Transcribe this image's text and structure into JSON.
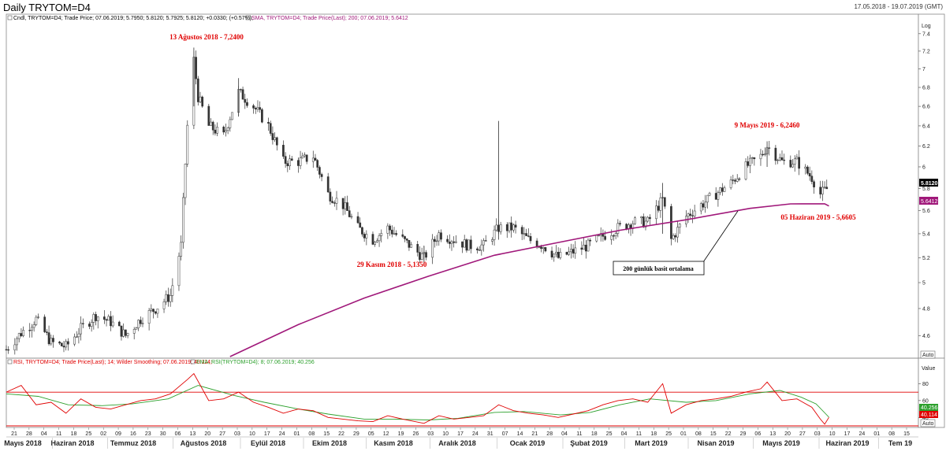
{
  "header": {
    "title": "Daily TRYTOM=D4",
    "date_range": "17.05.2018 - 19.07.2019 (GMT)"
  },
  "price_panel": {
    "legend_cndl": "Cndl, TRYTOM=D4; Trade Price; 07.06.2019; 5.7950; 5.8120; 5.7925; 5.8120; +0.0330; (+0.57%);",
    "legend_sma": "SMA, TRYTOM=D4; Trade Price(Last); 200; 07.06.2019; 5.6412",
    "axis_unit": "Log",
    "last_price_label": "5.8120",
    "sma_label": "5.6412",
    "auto_label": "Auto",
    "annotations": {
      "peak_2018": "13 Ağustos 2018 - 7,2400",
      "low_2018": "29 Kasım 2018 - 5,1350",
      "peak_2019": "9 Mayıs 2019 - 6,2460",
      "sma_point": "05 Haziran 2019 - 5,6605",
      "callout": "200 günlük basit ortalama"
    }
  },
  "rsi_panel": {
    "legend_rsi": "RSI, TRYTOM=D4; Trade Price(Last); 14; Wilder Smoothing; 07.06.2019; 40.114;",
    "legend_ema": "EMA, RSI(TRYTOM=D4); 8; 07.06.2019; 40.256",
    "axis_unit": "Value",
    "rsi_label": "40.114",
    "ema_label": "40.256",
    "auto_label": "Auto"
  },
  "x_axis": {
    "day_ticks": [
      "21",
      "28",
      "04",
      "11",
      "18",
      "25",
      "02",
      "09",
      "16",
      "23",
      "30",
      "06",
      "13",
      "20",
      "27",
      "03",
      "10",
      "17",
      "24",
      "01",
      "08",
      "15",
      "22",
      "29",
      "05",
      "12",
      "19",
      "26",
      "03",
      "10",
      "17",
      "24",
      "31",
      "07",
      "14",
      "21",
      "28",
      "04",
      "11",
      "18",
      "25",
      "04",
      "11",
      "18",
      "25",
      "01",
      "08",
      "15",
      "22",
      "29",
      "06",
      "13",
      "20",
      "27",
      "03",
      "10",
      "17",
      "24",
      "01",
      "08",
      "15"
    ],
    "months": [
      "Mayıs 2018",
      "Haziran 2018",
      "Temmuz 2018",
      "Ağustos 2018",
      "Eylül 2018",
      "Ekim 2018",
      "Kasım 2018",
      "Aralık 2018",
      "Ocak 2019",
      "Şubat 2019",
      "Mart 2019",
      "Nisan 2019",
      "Mayıs 2019",
      "Haziran 2019",
      "Tem 19"
    ]
  },
  "colors": {
    "candle": "#333333",
    "sma": "#a0187a",
    "rsi": "#e00000",
    "ema": "#2ca02c",
    "level": "#e00000",
    "annotation": "#e00000"
  },
  "chart_data": [
    {
      "type": "candlestick",
      "title": "Daily TRYTOM=D4",
      "ylim": [
        4.45,
        7.5
      ],
      "yscale": "log",
      "yticks": [
        4.6,
        4.8,
        5,
        5.2,
        5.4,
        5.6,
        5.8,
        6,
        6.2,
        6.4,
        6.6,
        6.8,
        7,
        7.2,
        7.4
      ],
      "x_range": [
        "2018-05-17",
        "2019-07-19"
      ],
      "series": [
        {
          "name": "Cndl, TRYTOM=D4; Trade Price",
          "close_path": [
            [
              "2018-05-17",
              4.5
            ],
            [
              "2018-05-24",
              4.62
            ],
            [
              "2018-05-31",
              4.72
            ],
            [
              "2018-06-07",
              4.55
            ],
            [
              "2018-06-14",
              4.52
            ],
            [
              "2018-06-21",
              4.65
            ],
            [
              "2018-06-28",
              4.75
            ],
            [
              "2018-07-05",
              4.7
            ],
            [
              "2018-07-12",
              4.6
            ],
            [
              "2018-07-19",
              4.72
            ],
            [
              "2018-07-26",
              4.8
            ],
            [
              "2018-08-02",
              4.9
            ],
            [
              "2018-08-07",
              5.3
            ],
            [
              "2018-08-10",
              6.4
            ],
            [
              "2018-08-13",
              7.1
            ],
            [
              "2018-08-15",
              6.7
            ],
            [
              "2018-08-20",
              6.4
            ],
            [
              "2018-08-27",
              6.3
            ],
            [
              "2018-09-03",
              6.75
            ],
            [
              "2018-09-10",
              6.6
            ],
            [
              "2018-09-17",
              6.4
            ],
            [
              "2018-09-24",
              6.05
            ],
            [
              "2018-10-01",
              6.05
            ],
            [
              "2018-10-08",
              6.1
            ],
            [
              "2018-10-15",
              5.75
            ],
            [
              "2018-10-22",
              5.65
            ],
            [
              "2018-10-29",
              5.45
            ],
            [
              "2018-11-05",
              5.35
            ],
            [
              "2018-11-12",
              5.45
            ],
            [
              "2018-11-19",
              5.35
            ],
            [
              "2018-11-29",
              5.2
            ],
            [
              "2018-12-06",
              5.4
            ],
            [
              "2018-12-13",
              5.35
            ],
            [
              "2018-12-20",
              5.3
            ],
            [
              "2018-12-27",
              5.3
            ],
            [
              "2019-01-03",
              5.45
            ],
            [
              "2019-01-10",
              5.45
            ],
            [
              "2019-01-17",
              5.35
            ],
            [
              "2019-01-24",
              5.3
            ],
            [
              "2019-01-31",
              5.2
            ],
            [
              "2019-02-07",
              5.25
            ],
            [
              "2019-02-14",
              5.3
            ],
            [
              "2019-02-21",
              5.38
            ],
            [
              "2019-02-28",
              5.45
            ],
            [
              "2019-03-07",
              5.5
            ],
            [
              "2019-03-14",
              5.5
            ],
            [
              "2019-03-21",
              5.7
            ],
            [
              "2019-03-25",
              5.35
            ],
            [
              "2019-04-01",
              5.55
            ],
            [
              "2019-04-08",
              5.65
            ],
            [
              "2019-04-15",
              5.75
            ],
            [
              "2019-04-22",
              5.85
            ],
            [
              "2019-04-29",
              6.0
            ],
            [
              "2019-05-06",
              6.1
            ],
            [
              "2019-05-09",
              6.2
            ],
            [
              "2019-05-16",
              6.05
            ],
            [
              "2019-05-23",
              6.05
            ],
            [
              "2019-05-30",
              5.9
            ],
            [
              "2019-06-03",
              5.75
            ],
            [
              "2019-06-07",
              5.81
            ]
          ]
        },
        {
          "name": "SMA, TRYTOM=D4; Trade Price(Last); 200",
          "points": [
            [
              "2018-08-30",
              4.45
            ],
            [
              "2018-10-01",
              4.68
            ],
            [
              "2018-11-01",
              4.88
            ],
            [
              "2018-12-01",
              5.05
            ],
            [
              "2019-01-01",
              5.22
            ],
            [
              "2019-02-01",
              5.33
            ],
            [
              "2019-03-01",
              5.43
            ],
            [
              "2019-04-01",
              5.52
            ],
            [
              "2019-05-01",
              5.62
            ],
            [
              "2019-05-20",
              5.66
            ],
            [
              "2019-06-05",
              5.6605
            ],
            [
              "2019-06-07",
              5.6412
            ]
          ]
        }
      ],
      "annotations": [
        {
          "text": "13 Ağustos 2018 - 7,2400",
          "x": "2018-08-13",
          "y": 7.24
        },
        {
          "text": "29 Kasım 2018 - 5,1350",
          "x": "2018-11-29",
          "y": 5.135
        },
        {
          "text": "9 Mayıs 2019 - 6,2460",
          "x": "2019-05-09",
          "y": 6.246
        },
        {
          "text": "05 Haziran 2019 - 5,6605",
          "x": "2019-06-05",
          "y": 5.6605
        }
      ]
    },
    {
      "type": "line",
      "ylim": [
        30,
        100
      ],
      "yticks": [
        40,
        60,
        80
      ],
      "levels": [
        30,
        70
      ],
      "series": [
        {
          "name": "RSI, TRYTOM=D4; Trade Price(Last); 14; Wilder Smoothing",
          "points": [
            [
              "2018-05-17",
              70
            ],
            [
              "2018-05-24",
              78
            ],
            [
              "2018-05-31",
              55
            ],
            [
              "2018-06-07",
              58
            ],
            [
              "2018-06-14",
              45
            ],
            [
              "2018-06-21",
              62
            ],
            [
              "2018-06-28",
              52
            ],
            [
              "2018-07-05",
              50
            ],
            [
              "2018-07-12",
              55
            ],
            [
              "2018-07-19",
              60
            ],
            [
              "2018-07-26",
              62
            ],
            [
              "2018-08-02",
              68
            ],
            [
              "2018-08-10",
              85
            ],
            [
              "2018-08-13",
              92
            ],
            [
              "2018-08-20",
              60
            ],
            [
              "2018-08-27",
              62
            ],
            [
              "2018-09-03",
              70
            ],
            [
              "2018-09-10",
              58
            ],
            [
              "2018-09-17",
              52
            ],
            [
              "2018-09-24",
              45
            ],
            [
              "2018-10-01",
              50
            ],
            [
              "2018-10-08",
              48
            ],
            [
              "2018-10-15",
              40
            ],
            [
              "2018-10-22",
              38
            ],
            [
              "2018-10-29",
              36
            ],
            [
              "2018-11-05",
              35
            ],
            [
              "2018-11-12",
              42
            ],
            [
              "2018-11-19",
              38
            ],
            [
              "2018-11-29",
              33
            ],
            [
              "2018-12-06",
              42
            ],
            [
              "2018-12-13",
              38
            ],
            [
              "2018-12-20",
              40
            ],
            [
              "2018-12-27",
              42
            ],
            [
              "2019-01-03",
              55
            ],
            [
              "2019-01-10",
              48
            ],
            [
              "2019-01-17",
              45
            ],
            [
              "2019-01-24",
              43
            ],
            [
              "2019-01-31",
              40
            ],
            [
              "2019-02-07",
              44
            ],
            [
              "2019-02-14",
              48
            ],
            [
              "2019-02-21",
              55
            ],
            [
              "2019-02-28",
              60
            ],
            [
              "2019-03-07",
              62
            ],
            [
              "2019-03-14",
              58
            ],
            [
              "2019-03-21",
              80
            ],
            [
              "2019-03-25",
              45
            ],
            [
              "2019-04-01",
              55
            ],
            [
              "2019-04-08",
              60
            ],
            [
              "2019-04-15",
              62
            ],
            [
              "2019-04-22",
              65
            ],
            [
              "2019-04-29",
              70
            ],
            [
              "2019-05-06",
              74
            ],
            [
              "2019-05-09",
              82
            ],
            [
              "2019-05-16",
              60
            ],
            [
              "2019-05-23",
              62
            ],
            [
              "2019-05-30",
              52
            ],
            [
              "2019-06-03",
              38
            ],
            [
              "2019-06-05",
              32
            ],
            [
              "2019-06-07",
              40.114
            ]
          ]
        },
        {
          "name": "EMA, RSI(TRYTOM=D4); 8",
          "points": [
            [
              "2018-05-17",
              68
            ],
            [
              "2018-06-01",
              65
            ],
            [
              "2018-06-15",
              55
            ],
            [
              "2018-07-01",
              54
            ],
            [
              "2018-07-15",
              56
            ],
            [
              "2018-08-01",
              62
            ],
            [
              "2018-08-15",
              78
            ],
            [
              "2018-09-01",
              66
            ],
            [
              "2018-09-15",
              58
            ],
            [
              "2018-10-01",
              50
            ],
            [
              "2018-10-15",
              44
            ],
            [
              "2018-11-01",
              38
            ],
            [
              "2018-11-15",
              38
            ],
            [
              "2018-12-01",
              37
            ],
            [
              "2018-12-15",
              39
            ],
            [
              "2019-01-01",
              46
            ],
            [
              "2019-01-15",
              47
            ],
            [
              "2019-02-01",
              43
            ],
            [
              "2019-02-15",
              46
            ],
            [
              "2019-03-01",
              55
            ],
            [
              "2019-03-15",
              62
            ],
            [
              "2019-04-01",
              58
            ],
            [
              "2019-04-15",
              60
            ],
            [
              "2019-05-01",
              68
            ],
            [
              "2019-05-15",
              72
            ],
            [
              "2019-05-25",
              64
            ],
            [
              "2019-06-01",
              56
            ],
            [
              "2019-06-07",
              40.256
            ]
          ]
        }
      ]
    }
  ]
}
